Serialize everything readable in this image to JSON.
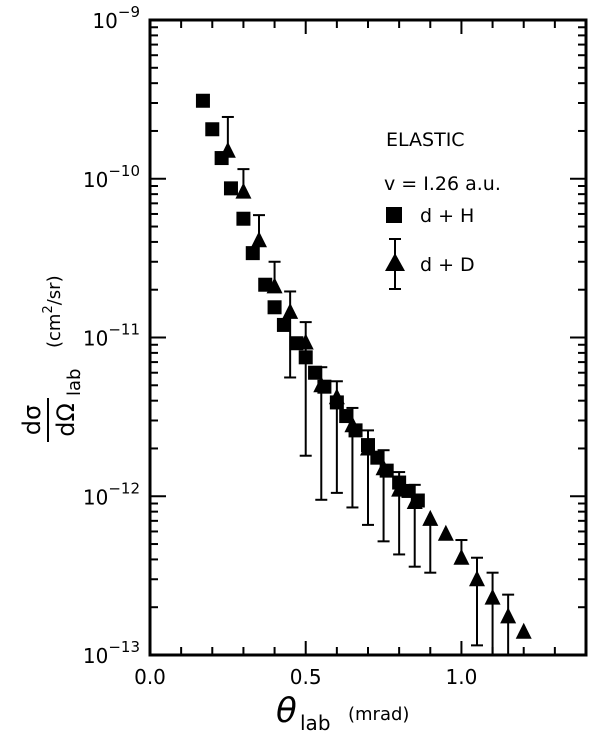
{
  "chart_data": {
    "type": "scatter",
    "title": "",
    "xlabel": {
      "symbol": "θ",
      "subscript": "lab",
      "unit": "(mrad)"
    },
    "ylabel": {
      "numerator": "dσ",
      "denominator": "dΩ",
      "subscript": "lab",
      "unit_pre": "(cm",
      "unit_sup": "2",
      "unit_post": "/sr)"
    },
    "xlim": [
      0.0,
      1.4
    ],
    "ylim": [
      1e-13,
      1e-09
    ],
    "y_scale": "log",
    "grid": false,
    "x_ticks": [
      {
        "value": 0.0,
        "label": "0.0"
      },
      {
        "value": 0.5,
        "label": "0.5"
      },
      {
        "value": 1.0,
        "label": "1.0"
      }
    ],
    "y_ticks": [
      {
        "value": 1e-13,
        "base": "10",
        "exp": "−13"
      },
      {
        "value": 1e-12,
        "base": "10",
        "exp": "−12"
      },
      {
        "value": 1e-11,
        "base": "10",
        "exp": "−11"
      },
      {
        "value": 1e-10,
        "base": "10",
        "exp": "−10"
      },
      {
        "value": 1e-09,
        "base": "10",
        "exp": "−9"
      }
    ],
    "annotations": {
      "line1": "ELASTIC",
      "line2": "v = I.26 a.u."
    },
    "legend_placement": "top-right",
    "series": [
      {
        "name": "d + H",
        "marker": "square",
        "points": [
          {
            "x": 0.17,
            "y": 3.1e-10
          },
          {
            "x": 0.2,
            "y": 2.05e-10
          },
          {
            "x": 0.23,
            "y": 1.35e-10
          },
          {
            "x": 0.26,
            "y": 8.7e-11
          },
          {
            "x": 0.3,
            "y": 5.6e-11
          },
          {
            "x": 0.33,
            "y": 3.4e-11
          },
          {
            "x": 0.37,
            "y": 2.15e-11
          },
          {
            "x": 0.4,
            "y": 1.55e-11
          },
          {
            "x": 0.43,
            "y": 1.2e-11
          },
          {
            "x": 0.47,
            "y": 9.2e-12
          },
          {
            "x": 0.5,
            "y": 7.5e-12
          },
          {
            "x": 0.53,
            "y": 6e-12
          },
          {
            "x": 0.56,
            "y": 4.9e-12
          },
          {
            "x": 0.6,
            "y": 3.9e-12
          },
          {
            "x": 0.63,
            "y": 3.2e-12
          },
          {
            "x": 0.66,
            "y": 2.6e-12
          },
          {
            "x": 0.7,
            "y": 2.1e-12
          },
          {
            "x": 0.73,
            "y": 1.75e-12
          },
          {
            "x": 0.76,
            "y": 1.45e-12
          },
          {
            "x": 0.8,
            "y": 1.22e-12
          },
          {
            "x": 0.83,
            "y": 1.08e-12
          },
          {
            "x": 0.86,
            "y": 9.4e-13
          }
        ]
      },
      {
        "name": "d + D",
        "marker": "triangle",
        "points": [
          {
            "x": 0.25,
            "y": 1.5e-10,
            "err_up": 2.45e-10
          },
          {
            "x": 0.3,
            "y": 8.3e-11,
            "err_up": 1.15e-10
          },
          {
            "x": 0.35,
            "y": 4.1e-11,
            "err_up": 5.9e-11
          },
          {
            "x": 0.4,
            "y": 2.1e-11,
            "err_up": 3e-11
          },
          {
            "x": 0.45,
            "y": 1.45e-11,
            "err_up": 1.95e-11,
            "err_down": 5.6e-12
          },
          {
            "x": 0.5,
            "y": 9.3e-12,
            "err_up": 1.25e-11,
            "err_down": 1.8e-12
          },
          {
            "x": 0.55,
            "y": 5e-12,
            "err_up": 6.5e-12,
            "err_down": 9.5e-13
          },
          {
            "x": 0.6,
            "y": 4.2e-12,
            "err_up": 5.3e-12,
            "err_down": 1.05e-12
          },
          {
            "x": 0.65,
            "y": 2.8e-12,
            "err_up": 3.6e-12,
            "err_down": 8.5e-13
          },
          {
            "x": 0.7,
            "y": 2e-12,
            "err_up": 2.6e-12,
            "err_down": 6.6e-13
          },
          {
            "x": 0.75,
            "y": 1.5e-12,
            "err_up": 1.95e-12,
            "err_down": 5.2e-13
          },
          {
            "x": 0.8,
            "y": 1.1e-12,
            "err_up": 1.42e-12,
            "err_down": 4.3e-13
          },
          {
            "x": 0.85,
            "y": 9.2e-13,
            "err_up": 1.18e-12,
            "err_down": 3.6e-13
          },
          {
            "x": 0.9,
            "y": 7.2e-13,
            "err_down": 3.3e-13
          },
          {
            "x": 0.95,
            "y": 5.8e-13
          },
          {
            "x": 1.0,
            "y": 4.1e-13,
            "err_up": 5.3e-13
          },
          {
            "x": 1.05,
            "y": 3e-13,
            "err_up": 4.1e-13,
            "err_down": 1.15e-13
          },
          {
            "x": 1.1,
            "y": 2.3e-13,
            "err_up": 3.3e-13,
            "err_down": 1e-13
          },
          {
            "x": 1.15,
            "y": 1.75e-13,
            "err_up": 2.4e-13,
            "err_down": 1e-13
          },
          {
            "x": 1.2,
            "y": 1.4e-13
          }
        ]
      }
    ]
  }
}
